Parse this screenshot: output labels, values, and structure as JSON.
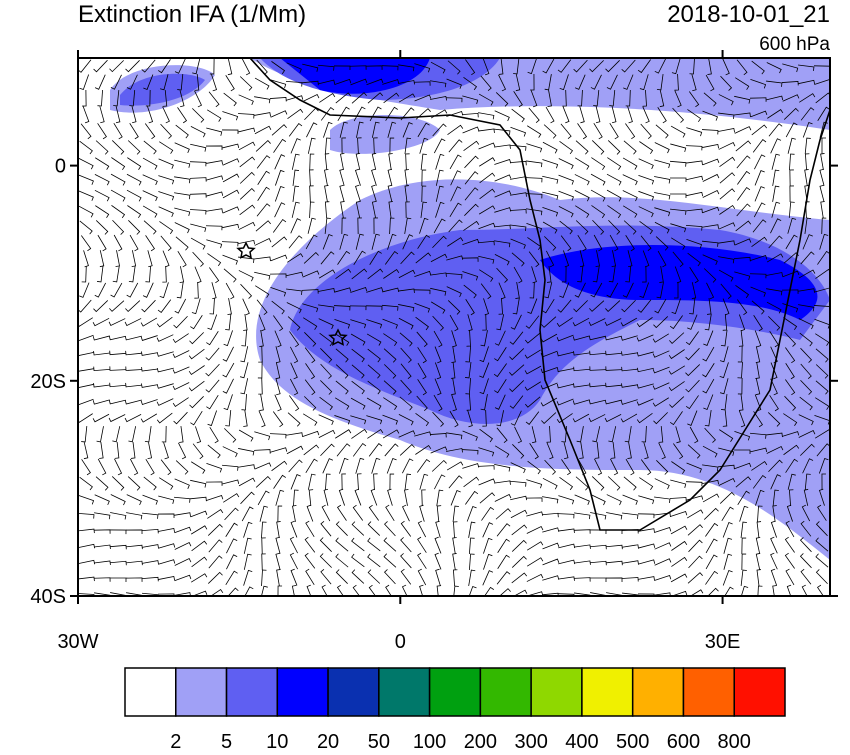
{
  "map": {
    "title": "Extinction IFA (1/Mm)",
    "time": "2018-10-01_21",
    "level": "600 hPa",
    "lonlim": [
      -30,
      40
    ],
    "latlim": [
      -40,
      10
    ],
    "lonticks": [
      {
        "value": -30,
        "label": "30W"
      },
      0,
      {
        "value": 30,
        "label": "30E"
      }
    ],
    "latticks": [
      0,
      {
        "value": -20,
        "label": "20S"
      },
      {
        "value": -40,
        "label": "40S"
      }
    ],
    "colorbar": {
      "levels": [
        2,
        5,
        10,
        20,
        50,
        100,
        200,
        300,
        400,
        500,
        600,
        800
      ],
      "colors": [
        "#ffffff",
        "#a0a0f6",
        "#5f5ff2",
        "#0000ff",
        "#0a30b0",
        "#00786a",
        "#00a010",
        "#33b800",
        "#8fd800",
        "#f0f000",
        "#ffb000",
        "#ff6000",
        "#ff1000"
      ]
    }
  }
}
